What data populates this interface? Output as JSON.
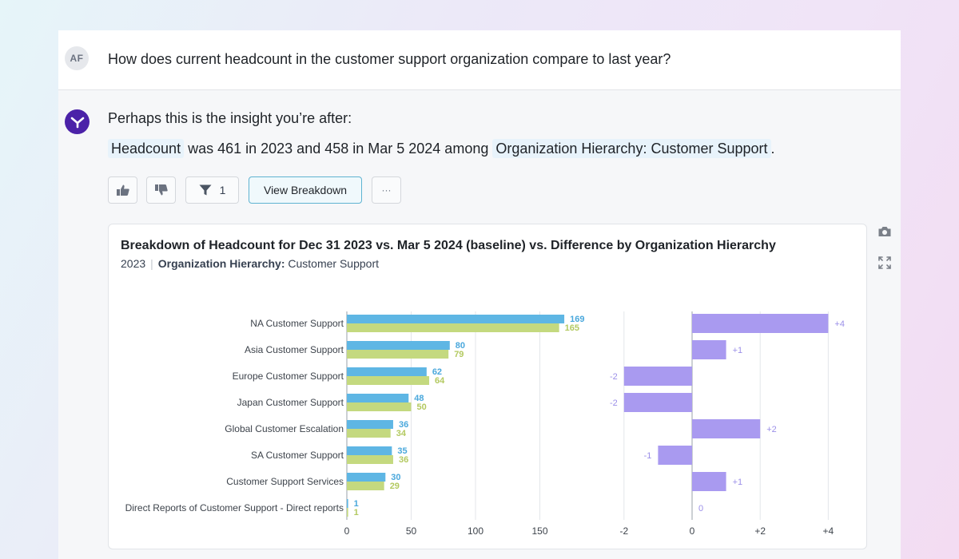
{
  "question": {
    "avatar_initials": "AF",
    "text": "How does current headcount in the customer support organization compare to last year?"
  },
  "answer": {
    "intro": "Perhaps this is the insight you’re after:",
    "insight": {
      "metric": "Headcount",
      "part1": " was 461 in 2023 and 458 in Mar 5 2024 among ",
      "filter": "Organization Hierarchy: Customer Support",
      "end": "."
    }
  },
  "actions": {
    "thumbs_up_icon": "thumbs-up-icon",
    "thumbs_down_icon": "thumbs-down-icon",
    "filter_count": "1",
    "view_breakdown": "View Breakdown",
    "more": "···"
  },
  "card": {
    "title": "Breakdown of Headcount for Dec 31 2023 vs. Mar 5 2024 (baseline) vs. Difference by Organization Hierarchy",
    "sub_year": "2023",
    "sub_sep": "|",
    "sub_filter_label": "Organization Hierarchy:",
    "sub_filter_value": " Customer Support"
  },
  "colors": {
    "series_2023": "#5eb6e4",
    "series_2024": "#c4d97f",
    "difference": "#a99af0",
    "label_2023": "#4aa8dc",
    "label_2024": "#b3c960",
    "label_diff": "#9b8fe8",
    "brand": "#4b22a8"
  },
  "chart_data": [
    {
      "type": "bar",
      "orientation": "horizontal",
      "categories": [
        "NA Customer Support",
        "Asia Customer Support",
        "Europe Customer Support",
        "Japan Customer Support",
        "Global Customer Escalation",
        "SA Customer Support",
        "Customer Support Services",
        "Direct Reports of Customer Support - Direct reports"
      ],
      "series": [
        {
          "name": "Dec 31 2023",
          "values": [
            169,
            80,
            62,
            48,
            36,
            35,
            30,
            1
          ]
        },
        {
          "name": "Mar 5 2024",
          "values": [
            165,
            79,
            64,
            50,
            34,
            36,
            29,
            1
          ]
        }
      ],
      "xlim": [
        0,
        185
      ],
      "xticks": [
        0,
        50,
        100,
        150
      ]
    },
    {
      "type": "bar",
      "orientation": "horizontal",
      "name": "Difference",
      "values": [
        4,
        1,
        -2,
        -2,
        2,
        -1,
        1,
        0
      ],
      "value_labels": [
        "+4",
        "+1",
        "-2",
        "-2",
        "+2",
        "-1",
        "+1",
        "0"
      ],
      "xlim": [
        -2,
        4.5
      ],
      "xticks": [
        -2,
        0,
        2,
        4
      ],
      "xtick_labels": [
        "-2",
        "0",
        "+2",
        "+4"
      ]
    }
  ]
}
